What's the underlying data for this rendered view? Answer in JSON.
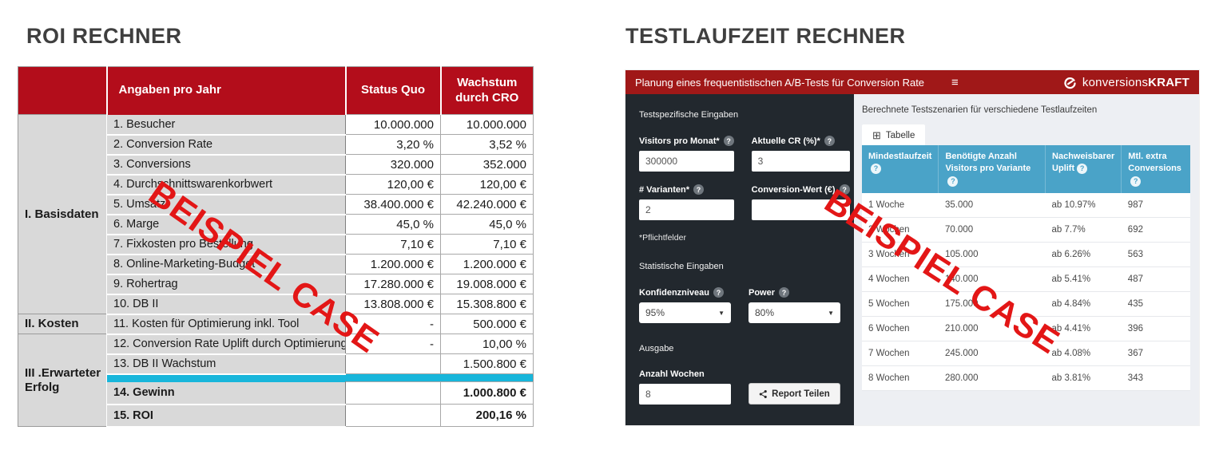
{
  "page": {
    "left_title": "ROI RECHNER",
    "right_title": "TESTLAUFZEIT RECHNER",
    "watermark": "BEISPIEL CASE"
  },
  "icons": {
    "help": "?",
    "menu": "≡",
    "table": "⊞",
    "dropdown": "▼"
  },
  "colors": {
    "roi_header_red": "#b30d1b",
    "widget_header_red": "#a01818",
    "sidebar_dark": "#22282e",
    "results_blue": "#4aa3c8",
    "divider_cyan": "#18b6db",
    "watermark_red": "#e31616"
  },
  "roi_table": {
    "columns": {
      "label": "Angaben pro Jahr",
      "status_quo": "Status Quo",
      "growth": "Wachstum durch CRO"
    },
    "rows": [
      {
        "section": {
          "label": "I. Basisdaten",
          "span": 10
        },
        "label": "1. Besucher",
        "status_quo": "10.000.000",
        "growth": "10.000.000"
      },
      {
        "label": "2. Conversion Rate",
        "status_quo": "3,20 %",
        "growth": "3,52 %"
      },
      {
        "label": "3. Conversions",
        "status_quo": "320.000",
        "growth": "352.000"
      },
      {
        "label": "4. Durchschnittswarenkorbwert",
        "status_quo": "120,00 €",
        "growth": "120,00 €"
      },
      {
        "label": "5. Umsatz",
        "status_quo": "38.400.000 €",
        "growth": "42.240.000 €"
      },
      {
        "label": "6. Marge",
        "status_quo": "45,0 %",
        "growth": "45,0 %"
      },
      {
        "label": "7. Fixkosten pro Bestellung",
        "status_quo": "7,10 €",
        "growth": "7,10 €"
      },
      {
        "label": "8. Online-Marketing-Budget",
        "status_quo": "1.200.000 €",
        "growth": "1.200.000 €"
      },
      {
        "label": "9. Rohertrag",
        "status_quo": "17.280.000 €",
        "growth": "19.008.000 €"
      },
      {
        "label": "10. DB II",
        "status_quo": "13.808.000 €",
        "growth": "15.308.800 €"
      },
      {
        "section": {
          "label": "II. Kosten",
          "span": 1
        },
        "label": "11. Kosten für Optimierung inkl. Tool",
        "status_quo": "-",
        "growth": "500.000 €"
      },
      {
        "section": {
          "label": "III .Erwarteter Erfolg",
          "span": 5
        },
        "label": "12. Conversion Rate Uplift durch Optimierung",
        "status_quo": "-",
        "growth": "10,00 %"
      },
      {
        "label": "13. DB II Wachstum",
        "status_quo": "",
        "growth": "1.500.800 €"
      },
      {
        "divider": true
      },
      {
        "label": "14. Gewinn",
        "status_quo": "",
        "growth": "1.000.800 €",
        "bold": true
      },
      {
        "label": "15. ROI",
        "status_quo": "",
        "growth": "200,16 %",
        "bold": true
      }
    ]
  },
  "widget": {
    "header": {
      "title": "Planung eines frequentistischen A/B-Tests für Conversion Rate",
      "logo_regular": "konversions",
      "logo_bold": "KRAFT"
    },
    "sidebar": {
      "section1": "Testspezifische Eingaben",
      "fields": {
        "visitors_label": "Visitors pro Monat*",
        "visitors_value": "300000",
        "cr_label": "Aktuelle CR (%)*",
        "cr_value": "3",
        "variants_label": "# Varianten*",
        "variants_value": "2",
        "conversion_value_label": "Conversion-Wert (€)",
        "conversion_value_value": ""
      },
      "required_note": "*Pflichtfelder",
      "section2": "Statistische Eingaben",
      "confidence_label": "Konfidenzniveau",
      "confidence_value": "95%",
      "power_label": "Power",
      "power_value": "80%",
      "section3": "Ausgabe",
      "weeks_label": "Anzahl Wochen",
      "weeks_value": "8",
      "share_button": "Report Teilen"
    },
    "results": {
      "caption": "Berechnete Testszenarien für verschiedene Testlaufzeiten",
      "tab": "Tabelle",
      "table": {
        "columns": [
          "Mindestlaufzeit",
          "Benötigte Anzahl Visitors pro Variante",
          "Nachweisbarer Uplift",
          "Mtl. extra Conversions"
        ],
        "rows": [
          [
            "1 Woche",
            "35.000",
            "ab 10.97%",
            "987"
          ],
          [
            "2 Wochen",
            "70.000",
            "ab 7.7%",
            "692"
          ],
          [
            "3 Wochen",
            "105.000",
            "ab 6.26%",
            "563"
          ],
          [
            "4 Wochen",
            "140.000",
            "ab 5.41%",
            "487"
          ],
          [
            "5 Wochen",
            "175.000",
            "ab 4.84%",
            "435"
          ],
          [
            "6 Wochen",
            "210.000",
            "ab 4.41%",
            "396"
          ],
          [
            "7 Wochen",
            "245.000",
            "ab 4.08%",
            "367"
          ],
          [
            "8 Wochen",
            "280.000",
            "ab 3.81%",
            "343"
          ]
        ]
      }
    }
  }
}
